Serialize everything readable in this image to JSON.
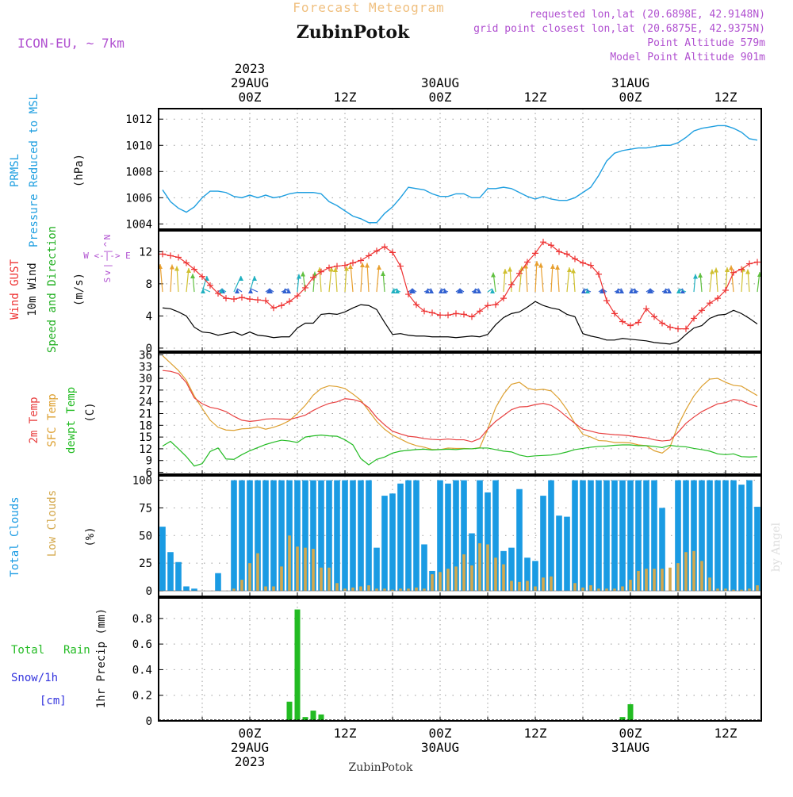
{
  "header": {
    "forecast_title": "Forecast Meteogram",
    "place": "ZubinPotok",
    "model": "ICON-EU, ~ 7km",
    "requested": "requested lon,lat (20.6898E, 42.9148N)",
    "grid_point": "grid point closest lon,lat (20.6875E, 42.9375N)",
    "point_altitude": "Point Altitude 579m",
    "model_altitude": "Model Point Altitude 901m",
    "footer_place": "ZubinPotok",
    "credit": "by Angel"
  },
  "colors": {
    "pressure": "#1f9fe0",
    "gust": "#ee3333",
    "wind": "#000000",
    "label_green": "#22b022",
    "temp": "#e84040",
    "sfc": "#dda030",
    "dew": "#22bb22",
    "total_clouds": "#1a9be3",
    "low_clouds": "#d4a84c",
    "rain": "#22bb22",
    "snow": "#3333dd",
    "purple": "#b050d0",
    "title": "#f0c080"
  },
  "time_axis": {
    "top_labels": [
      {
        "t": 0,
        "lines": [
          "2023",
          "29AUG",
          "00Z"
        ]
      },
      {
        "t": 12,
        "lines": [
          "12Z"
        ]
      },
      {
        "t": 24,
        "lines": [
          "30AUG",
          "00Z"
        ]
      },
      {
        "t": 36,
        "lines": [
          "12Z"
        ]
      },
      {
        "t": 48,
        "lines": [
          "31AUG",
          "00Z"
        ]
      },
      {
        "t": 60,
        "lines": [
          "12Z"
        ]
      }
    ],
    "bottom_labels": [
      {
        "t": 0,
        "lines": [
          "00Z",
          "29AUG",
          "2023"
        ]
      },
      {
        "t": 12,
        "lines": [
          "12Z"
        ]
      },
      {
        "t": 24,
        "lines": [
          "00Z",
          "30AUG"
        ]
      },
      {
        "t": 36,
        "lines": [
          "12Z"
        ]
      },
      {
        "t": 48,
        "lines": [
          "00Z",
          "31AUG"
        ]
      },
      {
        "t": 60,
        "lines": [
          "12Z"
        ]
      }
    ]
  },
  "panel_labels": {
    "pressure": [
      "PRMSL",
      "Pressure Reduced to MSL",
      "(hPa)"
    ],
    "wind": [
      "Wind GUST",
      "10m Wind",
      "Speed and Direction",
      "(m/s)"
    ],
    "compass": [
      "N",
      "^",
      "|",
      "W <-|-> E",
      "|",
      "v",
      "S"
    ],
    "temp": [
      "2m Temp",
      "SFC Temp",
      "dewpt Temp",
      "(C)"
    ],
    "clouds": [
      "Total Clouds",
      "Low Clouds",
      "(%)"
    ],
    "precip": [
      "Total",
      "Rain",
      "Snow/1h",
      "[cm]",
      "1hr Precip (mm)"
    ]
  },
  "chart_data": [
    {
      "type": "line",
      "title": "PRMSL Pressure Reduced to MSL",
      "ylabel": "(hPa)",
      "ylim": [
        1003.6,
        1012.8
      ],
      "yticks": [
        1004,
        1006,
        1008,
        1010,
        1012
      ],
      "x_hours": [
        -11,
        -10,
        -9,
        -8,
        -7,
        -6,
        -5,
        -4,
        -3,
        -2,
        -1,
        0,
        1,
        2,
        3,
        4,
        5,
        6,
        7,
        8,
        9,
        10,
        11,
        12,
        13,
        14,
        15,
        16,
        17,
        18,
        19,
        20,
        21,
        22,
        23,
        24,
        25,
        26,
        27,
        28,
        29,
        30,
        31,
        32,
        33,
        34,
        35,
        36,
        37,
        38,
        39,
        40,
        41,
        42,
        43,
        44,
        45,
        46,
        47,
        48,
        49,
        50,
        51,
        52,
        53,
        54,
        55,
        56,
        57,
        58,
        59,
        60,
        61,
        62,
        63,
        64
      ],
      "series": [
        {
          "name": "PRMSL",
          "values": [
            1006.6,
            1005.7,
            1005.2,
            1004.9,
            1005.3,
            1006.0,
            1006.5,
            1006.5,
            1006.4,
            1006.1,
            1006.0,
            1006.2,
            1006.0,
            1006.2,
            1006.0,
            1006.1,
            1006.3,
            1006.4,
            1006.4,
            1006.4,
            1006.3,
            1005.7,
            1005.4,
            1005.0,
            1004.6,
            1004.4,
            1004.1,
            1004.1,
            1004.8,
            1005.3,
            1006.0,
            1006.8,
            1006.7,
            1006.6,
            1006.3,
            1006.1,
            1006.1,
            1006.3,
            1006.3,
            1006.0,
            1006.0,
            1006.7,
            1006.7,
            1006.8,
            1006.7,
            1006.4,
            1006.1,
            1005.9,
            1006.1,
            1005.9,
            1005.8,
            1005.8,
            1006.0,
            1006.4,
            1006.8,
            1007.7,
            1008.8,
            1009.4,
            1009.6,
            1009.7,
            1009.8,
            1009.8,
            1009.9,
            1010.0,
            1010.0,
            1010.2,
            1010.6,
            1011.1,
            1011.3,
            1011.4,
            1011.5,
            1011.5,
            1011.3,
            1011.0,
            1010.5,
            1010.4
          ]
        }
      ]
    },
    {
      "type": "line",
      "title": "Wind GUST / 10m Wind Speed and Direction",
      "ylabel": "(m/s)",
      "ylim": [
        -0.4,
        14.6
      ],
      "yticks": [
        0,
        4,
        8,
        12
      ],
      "x_hours": [
        -11,
        -10,
        -9,
        -8,
        -7,
        -6,
        -5,
        -4,
        -3,
        -2,
        -1,
        0,
        1,
        2,
        3,
        4,
        5,
        6,
        7,
        8,
        9,
        10,
        11,
        12,
        13,
        14,
        15,
        16,
        17,
        18,
        19,
        20,
        21,
        22,
        23,
        24,
        25,
        26,
        27,
        28,
        29,
        30,
        31,
        32,
        33,
        34,
        35,
        36,
        37,
        38,
        39,
        40,
        41,
        42,
        43,
        44,
        45,
        46,
        47,
        48,
        49,
        50,
        51,
        52,
        53,
        54,
        55,
        56,
        57,
        58,
        59,
        60,
        61,
        62,
        63,
        64
      ],
      "series": [
        {
          "name": "Wind GUST",
          "values": [
            11.7,
            11.5,
            11.3,
            10.6,
            9.8,
            8.9,
            7.8,
            6.8,
            6.2,
            6.1,
            6.3,
            6.1,
            6.0,
            5.9,
            5.0,
            5.3,
            5.8,
            6.5,
            7.5,
            8.8,
            9.5,
            10.0,
            10.2,
            10.3,
            10.6,
            10.9,
            11.5,
            12.1,
            12.6,
            11.9,
            10.2,
            6.7,
            5.4,
            4.6,
            4.4,
            4.1,
            4.1,
            4.3,
            4.2,
            3.9,
            4.6,
            5.3,
            5.4,
            6.2,
            7.9,
            9.3,
            10.7,
            11.8,
            13.2,
            12.8,
            12.0,
            11.7,
            11.1,
            10.6,
            10.3,
            9.2,
            5.9,
            4.3,
            3.3,
            2.8,
            3.2,
            4.9,
            3.9,
            3.1,
            2.6,
            2.4,
            2.4,
            3.7,
            4.7,
            5.6,
            6.2,
            7.2,
            9.4,
            9.8,
            10.5,
            10.7
          ]
        },
        {
          "name": "10m Wind",
          "values": [
            5.0,
            4.9,
            4.5,
            4.0,
            2.6,
            2.0,
            1.9,
            1.6,
            1.8,
            2.0,
            1.6,
            2.0,
            1.6,
            1.5,
            1.3,
            1.4,
            1.4,
            2.5,
            3.1,
            3.1,
            4.2,
            4.3,
            4.2,
            4.5,
            5.0,
            5.4,
            5.3,
            4.8,
            3.2,
            1.7,
            1.8,
            1.6,
            1.5,
            1.5,
            1.4,
            1.4,
            1.4,
            1.3,
            1.4,
            1.5,
            1.4,
            1.7,
            2.9,
            3.8,
            4.3,
            4.5,
            5.1,
            5.8,
            5.3,
            5.0,
            4.8,
            4.2,
            3.9,
            1.8,
            1.5,
            1.3,
            1.0,
            1.0,
            1.2,
            1.1,
            1.0,
            0.9,
            0.7,
            0.6,
            0.5,
            0.8,
            1.7,
            2.5,
            2.8,
            3.7,
            4.1,
            4.2,
            4.7,
            4.3,
            3.7,
            3.0
          ]
        }
      ]
    },
    {
      "type": "line",
      "title": "2m Temp / SFC Temp / dewpt Temp",
      "ylabel": "(C)",
      "ylim": [
        5.5,
        36.5
      ],
      "yticks": [
        6,
        9,
        12,
        15,
        18,
        21,
        24,
        27,
        30,
        33,
        36
      ],
      "x_hours": [
        -11,
        -10,
        -9,
        -8,
        -7,
        -6,
        -5,
        -4,
        -3,
        -2,
        -1,
        0,
        1,
        2,
        3,
        4,
        5,
        6,
        7,
        8,
        9,
        10,
        11,
        12,
        13,
        14,
        15,
        16,
        17,
        18,
        19,
        20,
        21,
        22,
        23,
        24,
        25,
        26,
        27,
        28,
        29,
        30,
        31,
        32,
        33,
        34,
        35,
        36,
        37,
        38,
        39,
        40,
        41,
        42,
        43,
        44,
        45,
        46,
        47,
        48,
        49,
        50,
        51,
        52,
        53,
        54,
        55,
        56,
        57,
        58,
        59,
        60,
        61,
        62,
        63,
        64
      ],
      "series": [
        {
          "name": "2m Temp",
          "values": [
            32.0,
            31.8,
            31.2,
            28.9,
            25.0,
            23.5,
            22.6,
            22.2,
            21.5,
            20.3,
            19.3,
            19.0,
            19.2,
            19.6,
            19.7,
            19.6,
            19.5,
            20.0,
            20.6,
            21.8,
            22.8,
            23.6,
            24.0,
            24.8,
            24.6,
            24.0,
            22.5,
            20.0,
            18.1,
            16.5,
            15.8,
            15.2,
            15.0,
            14.6,
            14.4,
            14.3,
            14.5,
            14.3,
            14.3,
            13.8,
            14.6,
            17.0,
            19.0,
            20.5,
            22.0,
            22.7,
            22.8,
            23.3,
            23.6,
            23.1,
            21.8,
            20.1,
            18.5,
            17.0,
            16.5,
            16.0,
            15.8,
            15.6,
            15.5,
            15.3,
            15.0,
            14.8,
            14.3,
            14.0,
            14.2,
            16.2,
            18.5,
            20.1,
            21.5,
            22.5,
            23.5,
            23.8,
            24.6,
            24.3,
            23.4,
            22.8
          ]
        },
        {
          "name": "SFC Temp",
          "values": [
            35.8,
            33.9,
            32.0,
            29.5,
            25.5,
            22.3,
            19.3,
            17.5,
            16.8,
            16.7,
            17.1,
            17.2,
            17.6,
            17.0,
            17.5,
            18.2,
            19.2,
            21.0,
            23.1,
            25.7,
            27.4,
            28.1,
            27.9,
            27.4,
            26.0,
            24.4,
            21.7,
            19.0,
            17.0,
            15.5,
            14.5,
            13.5,
            12.8,
            12.4,
            11.8,
            11.8,
            12.2,
            12.1,
            12.1,
            12.0,
            12.3,
            17.0,
            22.5,
            26.0,
            28.5,
            29.0,
            27.5,
            27.0,
            27.2,
            26.8,
            24.8,
            22.0,
            18.5,
            15.7,
            15.0,
            14.1,
            14.0,
            13.6,
            13.6,
            13.5,
            13.0,
            12.8,
            11.5,
            10.9,
            12.5,
            18.0,
            22.0,
            25.5,
            28.0,
            29.8,
            30.0,
            29.0,
            28.2,
            28.0,
            26.8,
            25.6
          ]
        },
        {
          "name": "dewpt Temp",
          "values": [
            12.7,
            13.9,
            12.0,
            10.0,
            7.6,
            8.2,
            11.3,
            12.2,
            9.4,
            9.3,
            10.5,
            11.5,
            12.3,
            13.1,
            13.7,
            14.2,
            14.0,
            13.6,
            15.0,
            15.3,
            15.5,
            15.3,
            15.2,
            14.3,
            13.0,
            9.5,
            7.9,
            9.3,
            9.9,
            10.9,
            11.4,
            11.6,
            11.8,
            11.9,
            11.7,
            11.8,
            11.9,
            11.8,
            12.0,
            12.0,
            12.2,
            12.2,
            11.8,
            11.4,
            11.2,
            10.4,
            10.0,
            10.2,
            10.3,
            10.4,
            10.7,
            11.2,
            11.8,
            12.1,
            12.4,
            12.6,
            12.7,
            12.9,
            13.0,
            13.0,
            12.8,
            12.8,
            12.6,
            12.3,
            12.9,
            12.6,
            12.5,
            12.1,
            11.8,
            11.4,
            10.7,
            10.5,
            10.7,
            10.0,
            9.9,
            10.0
          ]
        }
      ]
    },
    {
      "type": "bar",
      "title": "Total Clouds / Low Clouds",
      "ylabel": "(%)",
      "ylim": [
        -5,
        104
      ],
      "yticks": [
        0,
        25,
        50,
        75,
        100
      ],
      "x_hours": [
        -11,
        -10,
        -9,
        -8,
        -7,
        -6,
        -5,
        -4,
        -3,
        -2,
        -1,
        0,
        1,
        2,
        3,
        4,
        5,
        6,
        7,
        8,
        9,
        10,
        11,
        12,
        13,
        14,
        15,
        16,
        17,
        18,
        19,
        20,
        21,
        22,
        23,
        24,
        25,
        26,
        27,
        28,
        29,
        30,
        31,
        32,
        33,
        34,
        35,
        36,
        37,
        38,
        39,
        40,
        41,
        42,
        43,
        44,
        45,
        46,
        47,
        48,
        49,
        50,
        51,
        52,
        53,
        54,
        55,
        56,
        57,
        58,
        59,
        60,
        61,
        62,
        63,
        64
      ],
      "series": [
        {
          "name": "Total Clouds",
          "values": [
            58,
            35,
            26,
            4,
            2,
            0,
            0,
            16,
            0,
            100,
            100,
            100,
            100,
            100,
            100,
            100,
            100,
            100,
            100,
            100,
            100,
            100,
            100,
            100,
            100,
            100,
            100,
            39,
            86,
            88,
            97,
            100,
            100,
            42,
            18,
            100,
            97,
            100,
            100,
            52,
            100,
            89,
            100,
            36,
            39,
            92,
            30,
            27,
            86,
            100,
            68,
            67,
            100,
            100,
            100,
            100,
            100,
            100,
            100,
            100,
            100,
            100,
            100,
            75,
            0,
            100,
            100,
            100,
            100,
            100,
            100,
            100,
            100,
            96,
            100,
            76
          ]
        },
        {
          "name": "Low Clouds",
          "values": [
            0,
            0,
            0,
            0,
            0,
            0,
            0,
            0,
            0,
            2,
            10,
            25,
            34,
            4,
            4,
            22,
            50,
            40,
            39,
            38,
            21,
            21,
            7,
            2,
            3,
            4,
            5,
            2,
            2,
            1,
            2,
            2,
            3,
            2,
            15,
            17,
            20,
            22,
            33,
            23,
            43,
            42,
            30,
            24,
            9,
            8,
            9,
            4,
            12,
            13,
            0,
            0,
            7,
            3,
            5,
            2,
            2,
            2,
            4,
            10,
            18,
            20,
            20,
            20,
            21,
            25,
            35,
            36,
            27,
            12,
            2,
            2,
            1,
            1,
            2,
            5
          ]
        }
      ]
    },
    {
      "type": "bar",
      "title": "1hr Precip (mm)",
      "ylabel": "1hr Precip (mm)",
      "ylim": [
        0,
        0.96
      ],
      "yticks": [
        0,
        0.2,
        0.4,
        0.6,
        0.8
      ],
      "x_hours": [
        5,
        6,
        7,
        8,
        9,
        47,
        48
      ],
      "series": [
        {
          "name": "Total Rain",
          "values": [
            0.15,
            0.87,
            0.03,
            0.08,
            0.05,
            0.03,
            0.13
          ]
        }
      ]
    }
  ]
}
